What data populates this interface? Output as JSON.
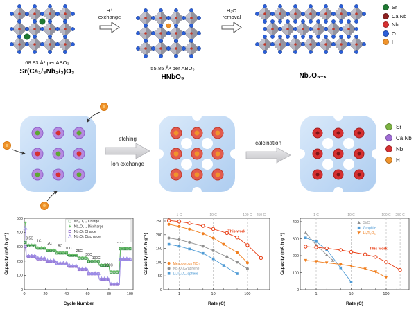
{
  "top": {
    "struct1": {
      "volume": "68.83 Å³ per ABO₃",
      "formula": "Sr(Ca₁/₃Nb₂/₃)O₃"
    },
    "arrow1": {
      "line1": "H⁺",
      "line2": "exchange"
    },
    "struct2": {
      "volume": "55.85 Å³ per ABO₃",
      "formula": "HNbO₃"
    },
    "arrow2": {
      "line1": "H₂O",
      "line2": "removal"
    },
    "struct3": {
      "formula": "Nb₂O₅₋ₓ"
    },
    "legend": {
      "items": [
        {
          "label": "Sr",
          "color": "#1f7a33"
        },
        {
          "label": "Ca Nb",
          "color": "#8e2020"
        },
        {
          "label": "Nb",
          "color": "#d63031"
        },
        {
          "label": "O",
          "color": "#2b5fd9"
        },
        {
          "label": "H",
          "color": "#f0932b"
        }
      ]
    }
  },
  "middle": {
    "arrow1": {
      "top": "etching",
      "bottom": "Ion exchange"
    },
    "arrow2": {
      "top": "calcination"
    },
    "legend": {
      "items": [
        {
          "label": "Sr",
          "color": "#7cb342"
        },
        {
          "label": "Ca Nb",
          "color": "#a06cd5"
        },
        {
          "label": "Nb",
          "color": "#d63031"
        },
        {
          "label": "H",
          "color": "#f0932b"
        }
      ]
    }
  },
  "chart_data": [
    {
      "type": "line",
      "title": "",
      "xlabel": "Cycle Number",
      "ylabel": "Capacity (mA h g⁻¹)",
      "xscale": "linear",
      "xlim": [
        0,
        103
      ],
      "ylim": [
        0,
        500
      ],
      "xticks": [
        0,
        20,
        40,
        60,
        80,
        100
      ],
      "yticks": [
        0,
        100,
        200,
        300,
        400,
        500
      ],
      "series": [
        {
          "name": "Nb₂O₅₋ₓ Charge",
          "color": "#2e8b3d",
          "marker": "square-open",
          "line": "solid",
          "lead": [
            [
              1,
              330
            ]
          ],
          "segments": [
            [
              2,
              10,
              308
            ],
            [
              11,
              20,
              290
            ],
            [
              21,
              30,
              273
            ],
            [
              31,
              40,
              256
            ],
            [
              41,
              50,
              240
            ],
            [
              51,
              60,
              220
            ],
            [
              61,
              70,
              198
            ],
            [
              71,
              80,
              170
            ],
            [
              81,
              90,
              123
            ],
            [
              91,
              100,
              286
            ]
          ]
        },
        {
          "name": "Nb₂O₅₋ₓ Discharge",
          "color": "#6abf69",
          "marker": "cross",
          "line": "solid",
          "lead": [
            [
              1,
              468
            ]
          ],
          "segments": [
            [
              2,
              10,
              314
            ],
            [
              11,
              20,
              295
            ],
            [
              21,
              30,
              278
            ],
            [
              31,
              40,
              261
            ],
            [
              41,
              50,
              245
            ],
            [
              51,
              60,
              225
            ],
            [
              61,
              70,
              203
            ],
            [
              71,
              80,
              175
            ],
            [
              81,
              90,
              128
            ],
            [
              91,
              100,
              291
            ]
          ]
        },
        {
          "name": "Nb₂O₅ Charge",
          "color": "#8a63c9",
          "marker": "square-open",
          "line": "solid",
          "lead": [
            [
              1,
              302
            ]
          ],
          "segments": [
            [
              2,
              10,
              232
            ],
            [
              11,
              20,
              215
            ],
            [
              21,
              30,
              198
            ],
            [
              31,
              40,
              181
            ],
            [
              41,
              50,
              163
            ],
            [
              51,
              60,
              141
            ],
            [
              61,
              70,
              110
            ],
            [
              71,
              80,
              73
            ],
            [
              81,
              90,
              36
            ],
            [
              91,
              100,
              212
            ]
          ]
        },
        {
          "name": "Nb₂O₅ Discharge",
          "color": "#9d8fe8",
          "marker": "triangle-open",
          "line": "solid",
          "lead": [
            [
              1,
              432
            ]
          ],
          "segments": [
            [
              2,
              10,
              237
            ],
            [
              11,
              20,
              220
            ],
            [
              21,
              30,
              203
            ],
            [
              31,
              40,
              186
            ],
            [
              41,
              50,
              168
            ],
            [
              51,
              60,
              146
            ],
            [
              61,
              70,
              114
            ],
            [
              71,
              80,
              77
            ],
            [
              81,
              90,
              40
            ],
            [
              91,
              100,
              216
            ]
          ]
        }
      ],
      "annotations": [
        {
          "text": "0.5C",
          "x": 5,
          "y": 352
        },
        {
          "text": "1C",
          "x": 14,
          "y": 332
        },
        {
          "text": "2C",
          "x": 24,
          "y": 315
        },
        {
          "text": "5C",
          "x": 34,
          "y": 298
        },
        {
          "text": "10C",
          "x": 42,
          "y": 281
        },
        {
          "text": "25C",
          "x": 52,
          "y": 261
        },
        {
          "text": "50C",
          "x": 61,
          "y": 239
        },
        {
          "text": "100C",
          "x": 68,
          "y": 213
        },
        {
          "text": "250C",
          "x": 80,
          "y": 163
        },
        {
          "text": "0.5C",
          "x": 91,
          "y": 328
        }
      ],
      "legend": {
        "x": 0.4,
        "y": 0.01,
        "box": true,
        "colored_text": false
      }
    },
    {
      "type": "scatter",
      "title": "",
      "xlabel": "Rate (C)",
      "ylabel": "Capacity (mA h g⁻¹)",
      "xscale": "log",
      "xlim": [
        0.35,
        450
      ],
      "ylim": [
        0,
        260
      ],
      "xticks": [
        1,
        10,
        100
      ],
      "minor_xticks": [
        0.5,
        2,
        5,
        20,
        50,
        200
      ],
      "yticks": [
        0,
        50,
        100,
        150,
        200,
        250
      ],
      "top_marks": [
        {
          "value": 1,
          "label": "1 C"
        },
        {
          "value": 10,
          "label": "10 C"
        },
        {
          "value": 100,
          "label": "100 C"
        },
        {
          "value": 250,
          "label": "250 C"
        }
      ],
      "series": [
        {
          "name": "This work",
          "color": "#e8380d",
          "marker": "circle-open",
          "line": "solid",
          "points": [
            [
              0.5,
              252
            ],
            [
              1,
              248
            ],
            [
              2,
              242
            ],
            [
              5,
              232
            ],
            [
              10,
              221
            ],
            [
              25,
              206
            ],
            [
              50,
              190
            ],
            [
              100,
              162
            ],
            [
              250,
              115
            ]
          ]
        },
        {
          "name": "Mesoporous TiO₂",
          "color": "#f07f1f",
          "marker": "circle",
          "line": "solid",
          "points": [
            [
              0.5,
              238
            ],
            [
              1,
              230
            ],
            [
              2,
              220
            ],
            [
              5,
              204
            ],
            [
              10,
              188
            ],
            [
              20,
              165
            ],
            [
              50,
              135
            ],
            [
              100,
              98
            ]
          ]
        },
        {
          "name": "Nb₂O₅/Graphene",
          "color": "#8f8f8f",
          "marker": "circle",
          "line": "solid",
          "points": [
            [
              0.5,
              188
            ],
            [
              1,
              182
            ],
            [
              2,
              172
            ],
            [
              5,
              158
            ],
            [
              10,
              142
            ],
            [
              25,
              120
            ],
            [
              50,
              100
            ],
            [
              100,
              76
            ]
          ]
        },
        {
          "name": "Li₄Ti₅O₁₂ sphere",
          "color": "#4f9bd5",
          "marker": "square",
          "line": "solid",
          "points": [
            [
              0.5,
              165
            ],
            [
              1,
              158
            ],
            [
              2,
              148
            ],
            [
              5,
              132
            ],
            [
              10,
              112
            ],
            [
              20,
              88
            ],
            [
              50,
              58
            ]
          ]
        }
      ],
      "annotations": [
        {
          "text": "This work",
          "x": 48,
          "y": 208,
          "color": "#e8380d",
          "bold": true,
          "size": 5.5
        }
      ],
      "legend": {
        "x": 0.03,
        "y": 0.6,
        "box": false,
        "colored_text": true,
        "skip": [
          "This work"
        ]
      }
    },
    {
      "type": "scatter",
      "title": "",
      "xlabel": "Rate (C)",
      "ylabel": "Capacity (mA h g⁻¹)",
      "xscale": "log",
      "xlim": [
        0.35,
        450
      ],
      "ylim": [
        0,
        420
      ],
      "xticks": [
        1,
        10,
        100
      ],
      "minor_xticks": [
        0.5,
        2,
        5,
        20,
        50,
        200
      ],
      "yticks": [
        0,
        100,
        200,
        300,
        400
      ],
      "top_marks": [
        {
          "value": 1,
          "label": "1 C"
        },
        {
          "value": 10,
          "label": "10 C"
        },
        {
          "value": 100,
          "label": "100 C"
        },
        {
          "value": 250,
          "label": "250 C"
        }
      ],
      "series": [
        {
          "name": "Si/C",
          "color": "#8f8f8f",
          "marker": "triangle",
          "line": "solid",
          "points": [
            [
              0.5,
              335
            ],
            [
              1,
              262
            ],
            [
              2,
              205
            ],
            [
              3,
              172
            ]
          ]
        },
        {
          "name": "Graphite",
          "color": "#4f9bd5",
          "marker": "square",
          "line": "solid",
          "points": [
            [
              0.5,
              305
            ],
            [
              1,
              282
            ],
            [
              2,
              235
            ],
            [
              5,
              128
            ],
            [
              10,
              45
            ]
          ]
        },
        {
          "name": "Li₄Ti₅O₁₂",
          "color": "#f07f1f",
          "marker": "triangle-down",
          "line": "solid",
          "points": [
            [
              0.5,
              172
            ],
            [
              1,
              166
            ],
            [
              2,
              158
            ],
            [
              5,
              149
            ],
            [
              10,
              139
            ],
            [
              25,
              122
            ],
            [
              50,
              105
            ],
            [
              100,
              72
            ]
          ]
        },
        {
          "name": "This work",
          "color": "#e8380d",
          "marker": "circle-open",
          "line": "solid",
          "points": [
            [
              0.5,
              253
            ],
            [
              1,
              249
            ],
            [
              2,
              243
            ],
            [
              5,
              233
            ],
            [
              10,
              222
            ],
            [
              25,
              207
            ],
            [
              50,
              192
            ],
            [
              100,
              163
            ],
            [
              250,
              116
            ]
          ]
        }
      ],
      "annotations": [
        {
          "text": "This work",
          "x": 60,
          "y": 235,
          "color": "#e8380d",
          "bold": true,
          "size": 5.5
        }
      ],
      "legend": {
        "x": 0.52,
        "y": 0.03,
        "box": false,
        "colored_text": true,
        "skip": [
          "This work"
        ]
      }
    }
  ]
}
